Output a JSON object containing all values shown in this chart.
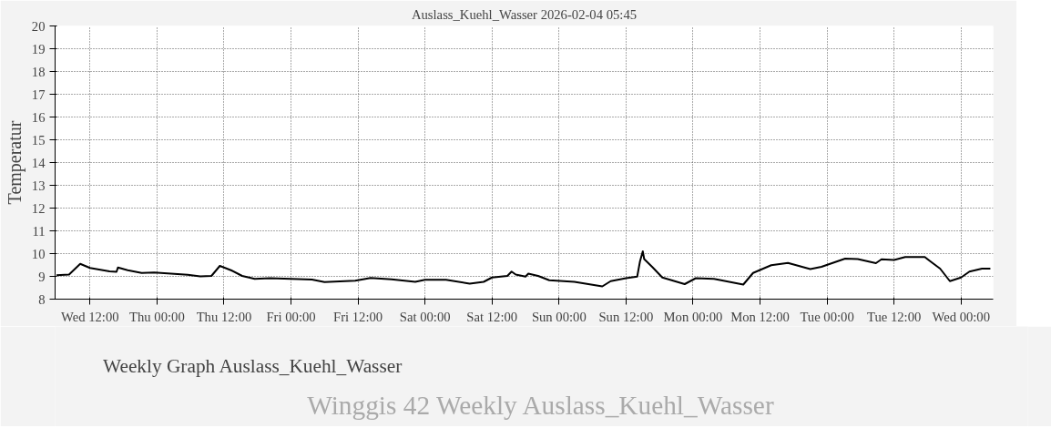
{
  "chart_data": {
    "type": "line",
    "title": "Auslass_Kuehl_Wasser 2026-02-04 05:45",
    "ylabel": "Temperatur",
    "annotations": [
      "Winggis 42 Weekly Auslass_Kuehl_Wasser"
    ],
    "xlim": [
      "2026-01-28T05:45",
      "2026-02-04T05:45"
    ],
    "xticks": [
      {
        "value": "2026-01-28T12:00",
        "label": "Wed 12:00"
      },
      {
        "value": "2026-01-29T00:00",
        "label": "Thu 00:00"
      },
      {
        "value": "2026-01-29T12:00",
        "label": "Thu 12:00"
      },
      {
        "value": "2026-01-30T00:00",
        "label": "Fri 00:00"
      },
      {
        "value": "2026-01-30T12:00",
        "label": "Fri 12:00"
      },
      {
        "value": "2026-01-31T00:00",
        "label": "Sat 00:00"
      },
      {
        "value": "2026-01-31T12:00",
        "label": "Sat 12:00"
      },
      {
        "value": "2026-02-01T00:00",
        "label": "Sun 00:00"
      },
      {
        "value": "2026-02-01T12:00",
        "label": "Sun 12:00"
      },
      {
        "value": "2026-02-02T00:00",
        "label": "Mon 00:00"
      },
      {
        "value": "2026-02-02T12:00",
        "label": "Mon 12:00"
      },
      {
        "value": "2026-02-03T00:00",
        "label": "Tue 00:00"
      },
      {
        "value": "2026-02-03T12:00",
        "label": "Tue 12:00"
      },
      {
        "value": "2026-02-04T00:00",
        "label": "Wed 00:00"
      }
    ],
    "ylim": [
      8,
      20
    ],
    "yticks": [
      8,
      9,
      10,
      11,
      12,
      13,
      14,
      15,
      16,
      17,
      18,
      19,
      20
    ],
    "grid": true,
    "legend": "bottom left",
    "marker": "none",
    "line_style": "solid",
    "x": [
      "2026-01-28T06:00",
      "2026-01-28T08:15",
      "2026-01-28T10:15",
      "2026-01-28T12:00",
      "2026-01-28T15:30",
      "2026-01-28T16:45",
      "2026-01-28T17:00",
      "2026-01-28T18:45",
      "2026-01-28T21:15",
      "2026-01-28T23:30",
      "2026-01-29T05:30",
      "2026-01-29T07:45",
      "2026-01-29T09:45",
      "2026-01-29T11:15",
      "2026-01-29T13:15",
      "2026-01-29T15:15",
      "2026-01-29T17:30",
      "2026-01-29T20:15",
      "2026-01-30T00:00",
      "2026-01-30T03:45",
      "2026-01-30T06:00",
      "2026-01-30T11:30",
      "2026-01-30T14:15",
      "2026-01-30T18:00",
      "2026-01-30T22:15",
      "2026-01-31T00:00",
      "2026-01-31T03:45",
      "2026-01-31T08:00",
      "2026-01-31T10:30",
      "2026-01-31T12:00",
      "2026-01-31T14:45",
      "2026-01-31T15:30",
      "2026-01-31T16:15",
      "2026-01-31T18:00",
      "2026-01-31T18:30",
      "2026-01-31T20:15",
      "2026-01-31T22:15",
      "2026-02-01T02:45",
      "2026-02-01T07:45",
      "2026-02-01T09:15",
      "2026-02-01T12:00",
      "2026-02-01T14:00",
      "2026-02-01T14:30",
      "2026-02-01T15:00",
      "2026-02-01T15:15",
      "2026-02-01T16:45",
      "2026-02-01T18:30",
      "2026-02-01T22:30",
      "2026-02-02T00:30",
      "2026-02-02T03:45",
      "2026-02-02T09:00",
      "2026-02-02T10:45",
      "2026-02-02T14:00",
      "2026-02-02T17:00",
      "2026-02-02T21:00",
      "2026-02-02T23:00",
      "2026-02-03T03:15",
      "2026-02-03T05:30",
      "2026-02-03T08:45",
      "2026-02-03T09:45",
      "2026-02-03T12:00",
      "2026-02-03T14:00",
      "2026-02-03T17:30",
      "2026-02-03T18:30",
      "2026-02-03T20:15",
      "2026-02-03T22:00",
      "2026-02-04T00:00",
      "2026-02-04T01:30",
      "2026-02-04T03:45",
      "2026-02-04T05:15"
    ],
    "series": [
      {
        "name": "Weekly Graph Auslass_Kuehl_Wasser",
        "color": "#000000",
        "values": [
          9.05,
          9.08,
          9.55,
          9.37,
          9.22,
          9.2,
          9.39,
          9.27,
          9.15,
          9.17,
          9.07,
          9.0,
          9.02,
          9.46,
          9.27,
          9.02,
          8.89,
          8.92,
          8.89,
          8.86,
          8.75,
          8.81,
          8.93,
          8.87,
          8.76,
          8.85,
          8.85,
          8.68,
          8.76,
          8.95,
          9.02,
          9.21,
          9.08,
          8.99,
          9.12,
          9.02,
          8.83,
          8.76,
          8.56,
          8.79,
          8.92,
          8.99,
          9.66,
          10.1,
          9.76,
          9.4,
          8.95,
          8.66,
          8.92,
          8.89,
          8.64,
          9.15,
          9.49,
          9.59,
          9.32,
          9.42,
          9.78,
          9.76,
          9.58,
          9.75,
          9.72,
          9.85,
          9.85,
          9.66,
          9.34,
          8.79,
          8.95,
          9.21,
          9.34,
          9.34
        ]
      }
    ]
  }
}
